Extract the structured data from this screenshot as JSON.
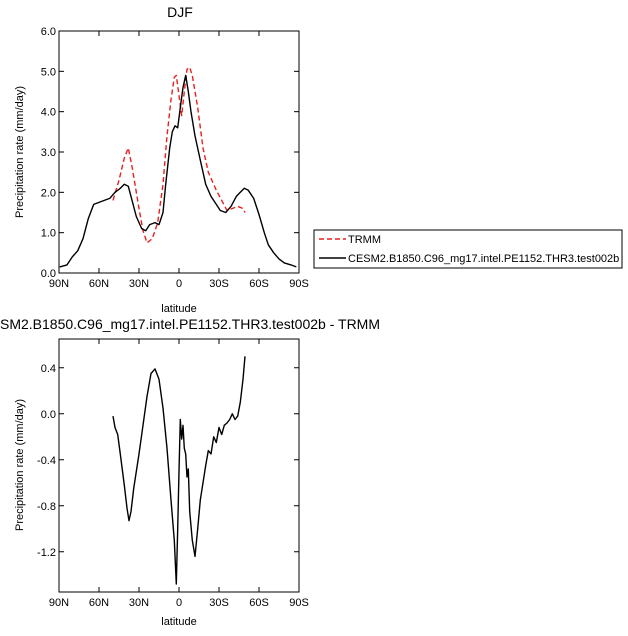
{
  "chart_data": [
    {
      "type": "line",
      "title": "DJF",
      "xlabel": "latitude",
      "ylabel": "Precipitation rate (mm/day)",
      "xlim": [
        90,
        -90
      ],
      "ylim": [
        0,
        6
      ],
      "xticks": [
        {
          "v": 90,
          "label": "90N"
        },
        {
          "v": 60,
          "label": "60N"
        },
        {
          "v": 30,
          "label": "30N"
        },
        {
          "v": 0,
          "label": "0"
        },
        {
          "v": -30,
          "label": "30S"
        },
        {
          "v": -60,
          "label": "60S"
        },
        {
          "v": -90,
          "label": "90S"
        }
      ],
      "yticks": [
        {
          "v": 0,
          "label": "0.0"
        },
        {
          "v": 1,
          "label": "1.0"
        },
        {
          "v": 2,
          "label": "2.0"
        },
        {
          "v": 3,
          "label": "3.0"
        },
        {
          "v": 4,
          "label": "4.0"
        },
        {
          "v": 5,
          "label": "5.0"
        },
        {
          "v": 6,
          "label": "6.0"
        }
      ],
      "legend": "outside-right",
      "series": [
        {
          "name": "TRMM",
          "color": "#e8201f",
          "dash": "dashed",
          "points": [
            [
              49.5,
              1.8
            ],
            [
              45,
              2.3
            ],
            [
              41,
              2.85
            ],
            [
              38,
              3.1
            ],
            [
              35,
              2.6
            ],
            [
              30,
              1.6
            ],
            [
              27,
              1.05
            ],
            [
              24,
              0.75
            ],
            [
              20,
              0.85
            ],
            [
              16,
              1.25
            ],
            [
              12,
              2.2
            ],
            [
              9,
              3.4
            ],
            [
              6,
              4.3
            ],
            [
              3.5,
              4.85
            ],
            [
              2,
              4.9
            ],
            [
              0,
              4.4
            ],
            [
              -2,
              3.9
            ],
            [
              -4,
              4.5
            ],
            [
              -6,
              5.05
            ],
            [
              -8,
              5.1
            ],
            [
              -10,
              4.9
            ],
            [
              -14,
              4.1
            ],
            [
              -18,
              3.1
            ],
            [
              -22,
              2.5
            ],
            [
              -28,
              2.05
            ],
            [
              -32,
              1.8
            ],
            [
              -36,
              1.55
            ],
            [
              -40,
              1.6
            ],
            [
              -44,
              1.65
            ],
            [
              -48,
              1.6
            ],
            [
              -49.5,
              1.5
            ]
          ]
        },
        {
          "name": "CESM2.B1850.C96_mg17.intel.PE1152.THR3.test002b",
          "color": "#000000",
          "dash": "solid",
          "points": [
            [
              89.5,
              0.15
            ],
            [
              84,
              0.2
            ],
            [
              80,
              0.4
            ],
            [
              76,
              0.55
            ],
            [
              72,
              0.85
            ],
            [
              68,
              1.35
            ],
            [
              64,
              1.7
            ],
            [
              60,
              1.75
            ],
            [
              56,
              1.8
            ],
            [
              52,
              1.85
            ],
            [
              48,
              2.0
            ],
            [
              44,
              2.1
            ],
            [
              41,
              2.2
            ],
            [
              38,
              2.15
            ],
            [
              36,
              1.9
            ],
            [
              32,
              1.4
            ],
            [
              28,
              1.1
            ],
            [
              25,
              1.05
            ],
            [
              22,
              1.2
            ],
            [
              18,
              1.25
            ],
            [
              15,
              1.2
            ],
            [
              12,
              1.5
            ],
            [
              10,
              2.2
            ],
            [
              7,
              3.1
            ],
            [
              5,
              3.5
            ],
            [
              3,
              3.65
            ],
            [
              1,
              3.6
            ],
            [
              -1,
              4.1
            ],
            [
              -3,
              4.6
            ],
            [
              -5,
              4.9
            ],
            [
              -7,
              4.5
            ],
            [
              -9,
              4.0
            ],
            [
              -12,
              3.4
            ],
            [
              -16,
              2.8
            ],
            [
              -20,
              2.2
            ],
            [
              -24,
              1.9
            ],
            [
              -28,
              1.7
            ],
            [
              -31,
              1.55
            ],
            [
              -35,
              1.5
            ],
            [
              -39,
              1.65
            ],
            [
              -43,
              1.9
            ],
            [
              -46,
              2.0
            ],
            [
              -49,
              2.1
            ],
            [
              -52,
              2.05
            ],
            [
              -56,
              1.85
            ],
            [
              -60,
              1.45
            ],
            [
              -64,
              1.0
            ],
            [
              -67,
              0.7
            ],
            [
              -71,
              0.5
            ],
            [
              -75,
              0.35
            ],
            [
              -79,
              0.25
            ],
            [
              -84,
              0.2
            ],
            [
              -88,
              0.15
            ]
          ]
        }
      ]
    },
    {
      "type": "line",
      "title": "SM2.B1850.C96_mg17.intel.PE1152.THR3.test002b - TRMM",
      "xlabel": "latitude",
      "ylabel": "Precipitation rate (mm/day)",
      "xlim": [
        90,
        -90
      ],
      "ylim": [
        -1.55,
        0.65
      ],
      "xticks": [
        {
          "v": 90,
          "label": "90N"
        },
        {
          "v": 60,
          "label": "60N"
        },
        {
          "v": 30,
          "label": "30N"
        },
        {
          "v": 0,
          "label": "0"
        },
        {
          "v": -30,
          "label": "30S"
        },
        {
          "v": -60,
          "label": "60S"
        },
        {
          "v": -90,
          "label": "90S"
        }
      ],
      "yticks": [
        {
          "v": 0.4,
          "label": "0.4"
        },
        {
          "v": 0.0,
          "label": "0.0"
        },
        {
          "v": -0.4,
          "label": "-0.4"
        },
        {
          "v": -0.8,
          "label": "-0.8"
        },
        {
          "v": -1.2,
          "label": "-1.2"
        }
      ],
      "series": [
        {
          "name": "",
          "color": "#000000",
          "dash": "solid",
          "points": [
            [
              49.5,
              -0.02
            ],
            [
              48,
              -0.12
            ],
            [
              46,
              -0.18
            ],
            [
              44,
              -0.35
            ],
            [
              41,
              -0.62
            ],
            [
              39,
              -0.82
            ],
            [
              37.5,
              -0.93
            ],
            [
              36,
              -0.85
            ],
            [
              34,
              -0.65
            ],
            [
              30,
              -0.35
            ],
            [
              27,
              -0.1
            ],
            [
              24,
              0.15
            ],
            [
              21,
              0.35
            ],
            [
              18,
              0.39
            ],
            [
              15,
              0.3
            ],
            [
              12,
              0.05
            ],
            [
              9,
              -0.3
            ],
            [
              6,
              -0.75
            ],
            [
              3.5,
              -1.1
            ],
            [
              2,
              -1.48
            ],
            [
              1,
              -1.0
            ],
            [
              0,
              -0.5
            ],
            [
              -1,
              -0.05
            ],
            [
              -2,
              -0.22
            ],
            [
              -3,
              -0.1
            ],
            [
              -4,
              -0.3
            ],
            [
              -5,
              -0.35
            ],
            [
              -6,
              -0.55
            ],
            [
              -7,
              -0.48
            ],
            [
              -8,
              -0.85
            ],
            [
              -10,
              -1.1
            ],
            [
              -12,
              -1.24
            ],
            [
              -14,
              -1.0
            ],
            [
              -16,
              -0.75
            ],
            [
              -18,
              -0.6
            ],
            [
              -20,
              -0.45
            ],
            [
              -22,
              -0.32
            ],
            [
              -24,
              -0.35
            ],
            [
              -26,
              -0.2
            ],
            [
              -28,
              -0.25
            ],
            [
              -30,
              -0.12
            ],
            [
              -32,
              -0.18
            ],
            [
              -34,
              -0.1
            ],
            [
              -36,
              -0.08
            ],
            [
              -38,
              -0.05
            ],
            [
              -40,
              0.0
            ],
            [
              -42,
              -0.05
            ],
            [
              -44,
              -0.02
            ],
            [
              -46,
              0.1
            ],
            [
              -48,
              0.3
            ],
            [
              -49.5,
              0.5
            ]
          ]
        }
      ]
    }
  ]
}
